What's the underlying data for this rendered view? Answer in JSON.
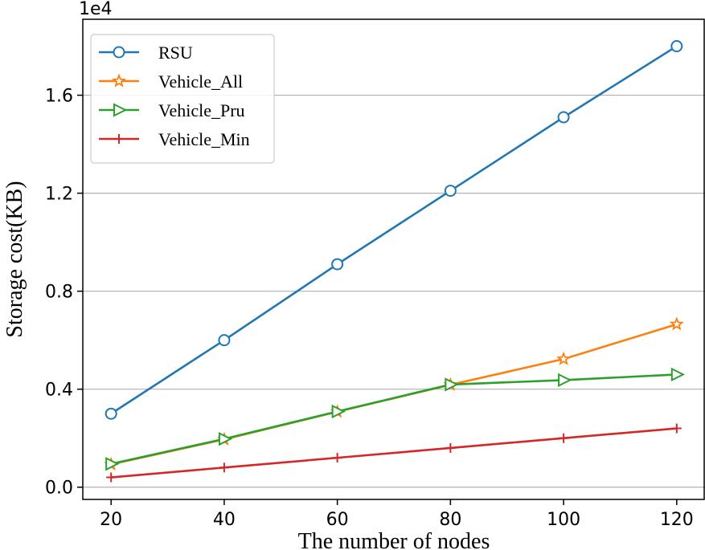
{
  "chart_data": {
    "type": "line",
    "x": [
      20,
      40,
      60,
      80,
      100,
      120
    ],
    "xticks": [
      20,
      40,
      60,
      80,
      100,
      120
    ],
    "xtick_labels": [
      "20",
      "40",
      "60",
      "80",
      "100",
      "120"
    ],
    "yticks": [
      0.0,
      0.4,
      0.8,
      1.2,
      1.6
    ],
    "ytick_labels": [
      "0.0",
      "0.4",
      "0.8",
      "1.2",
      "1.6"
    ],
    "y_scale_label": "1e4",
    "xlim": [
      15,
      125
    ],
    "ylim": [
      -0.05,
      1.91
    ],
    "xlabel": "The number of nodes",
    "ylabel": "Storage cost(KB)",
    "grid": "horizontal",
    "legend_position": "top-left",
    "series": [
      {
        "name": "RSU",
        "color": "#1f77b4",
        "marker": "circle",
        "values": [
          0.3,
          0.6,
          0.91,
          1.21,
          1.51,
          1.8
        ]
      },
      {
        "name": "Vehicle_All",
        "color": "#ff7f0e",
        "marker": "star",
        "values": [
          0.093,
          0.195,
          0.308,
          0.418,
          0.523,
          0.665
        ]
      },
      {
        "name": "Vehicle_Pru",
        "color": "#2ca02c",
        "marker": "triangle-right",
        "values": [
          0.095,
          0.197,
          0.309,
          0.419,
          0.437,
          0.46
        ]
      },
      {
        "name": "Vehicle_Min",
        "color": "#d62728",
        "marker": "plus",
        "values": [
          0.04,
          0.08,
          0.12,
          0.16,
          0.2,
          0.24
        ]
      }
    ]
  }
}
